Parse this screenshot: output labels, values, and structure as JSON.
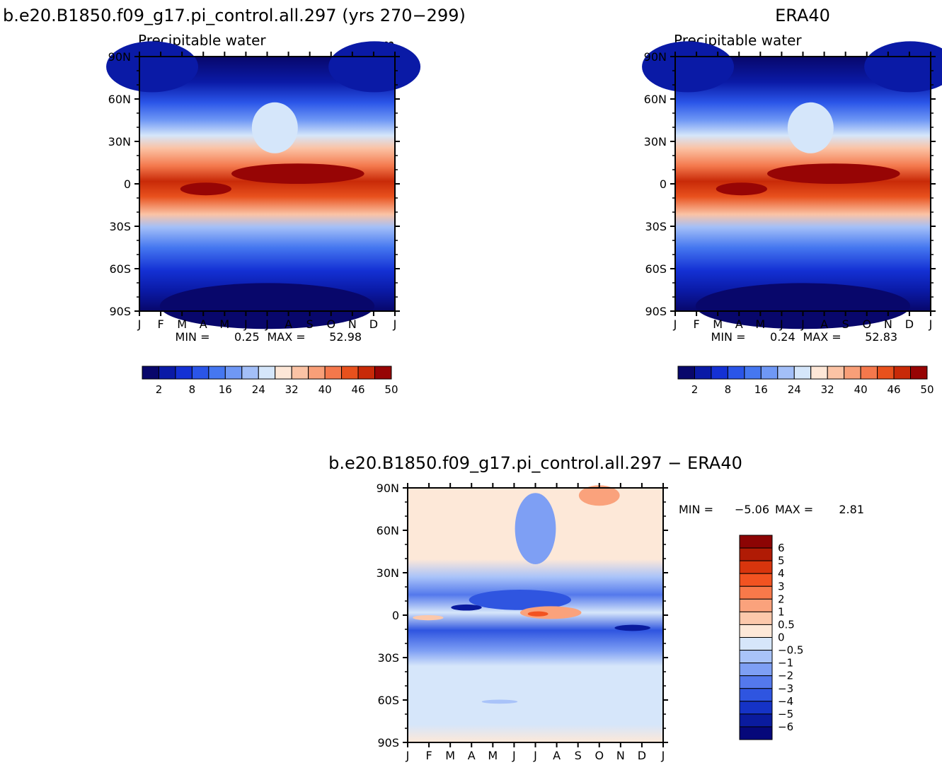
{
  "chart_data": [
    {
      "type": "heatmap",
      "title": "b.e20.B1850.f09_g17.pi_control.all.297 (yrs 270−299)",
      "subtitle": "Precipitable water",
      "units": "mm",
      "x_ticks": [
        "J",
        "F",
        "M",
        "A",
        "M",
        "J",
        "J",
        "A",
        "S",
        "O",
        "N",
        "D",
        "J"
      ],
      "y_ticks": [
        "90N",
        "60N",
        "30N",
        "0",
        "30S",
        "60S",
        "90S"
      ],
      "min_label": "MIN =",
      "min_value": "0.25",
      "max_label": "MAX =",
      "max_value": "52.98",
      "colorbar": {
        "labels": [
          "2",
          "8",
          "16",
          "24",
          "32",
          "40",
          "46",
          "50"
        ],
        "colors": [
          "#08076b",
          "#0a1aa6",
          "#1431d4",
          "#2a55e8",
          "#4577f0",
          "#6f98f5",
          "#a3bff8",
          "#d5e6fa",
          "#fde7d7",
          "#fbc3a5",
          "#f89f78",
          "#f4784c",
          "#e8511d",
          "#c82a08",
          "#970505"
        ]
      }
    },
    {
      "type": "heatmap",
      "title": "ERA40",
      "subtitle": "Precipitable water",
      "x_ticks": [
        "J",
        "F",
        "M",
        "A",
        "M",
        "J",
        "J",
        "A",
        "S",
        "O",
        "N",
        "D",
        "J"
      ],
      "y_ticks": [
        "90N",
        "60N",
        "30N",
        "0",
        "30S",
        "60S",
        "90S"
      ],
      "min_label": "MIN =",
      "min_value": "0.24",
      "max_label": "MAX =",
      "max_value": "52.83",
      "colorbar": {
        "labels": [
          "2",
          "8",
          "16",
          "24",
          "32",
          "40",
          "46",
          "50"
        ],
        "colors": [
          "#08076b",
          "#0a1aa6",
          "#1431d4",
          "#2a55e8",
          "#4577f0",
          "#6f98f5",
          "#a3bff8",
          "#d5e6fa",
          "#fde7d7",
          "#fbc3a5",
          "#f89f78",
          "#f4784c",
          "#e8511d",
          "#c82a08",
          "#970505"
        ]
      }
    },
    {
      "type": "heatmap",
      "title": "b.e20.B1850.f09_g17.pi_control.all.297 − ERA40",
      "x_ticks": [
        "J",
        "F",
        "M",
        "A",
        "M",
        "J",
        "J",
        "A",
        "S",
        "O",
        "N",
        "D",
        "J"
      ],
      "y_ticks": [
        "90N",
        "60N",
        "30N",
        "0",
        "30S",
        "60S",
        "90S"
      ],
      "min_label": "MIN =",
      "min_value": "−5.06",
      "max_label": "MAX =",
      "max_value": "2.81",
      "colorbar": {
        "labels": [
          "6",
          "5",
          "4",
          "3",
          "2",
          "1",
          "0.5",
          "0",
          "−0.5",
          "−1",
          "−2",
          "−3",
          "−4",
          "−5",
          "−6"
        ],
        "colors": [
          "#8c0404",
          "#b01b05",
          "#d8350d",
          "#f25321",
          "#f8794a",
          "#faa27c",
          "#fcc8ab",
          "#fde8d8",
          "#d6e6fa",
          "#a9c3f9",
          "#7e9ff4",
          "#5479ec",
          "#2f55e0",
          "#1533c6",
          "#0a1b9e",
          "#06087a"
        ]
      }
    }
  ]
}
